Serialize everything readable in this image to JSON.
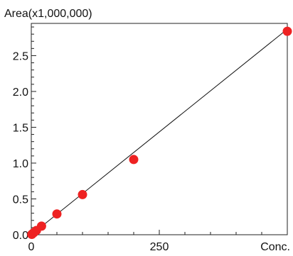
{
  "chart_data": {
    "type": "scatter",
    "ylabel": "Area(x1,000,000)",
    "xlabel": "Conc.",
    "xlim": [
      0,
      500
    ],
    "ylim": [
      0,
      2.95
    ],
    "x_ticks": [
      0,
      250
    ],
    "x_tick_labels": [
      "0",
      "250"
    ],
    "y_ticks": [
      0.0,
      0.5,
      1.0,
      1.5,
      2.0,
      2.5
    ],
    "y_tick_labels": [
      "0.0",
      "0.5",
      "1.0",
      "1.5",
      "2.0",
      "2.5"
    ],
    "grid": false,
    "series": [
      {
        "points": [
          {
            "x": 1,
            "y": 0.005
          },
          {
            "x": 2,
            "y": 0.012
          },
          {
            "x": 5,
            "y": 0.03
          },
          {
            "x": 10,
            "y": 0.06
          },
          {
            "x": 20,
            "y": 0.12
          },
          {
            "x": 50,
            "y": 0.29
          },
          {
            "x": 100,
            "y": 0.56
          },
          {
            "x": 200,
            "y": 1.05
          },
          {
            "x": 500,
            "y": 2.84
          }
        ]
      }
    ],
    "fit_line": {
      "x0": 0,
      "y0": 0.0,
      "x1": 500,
      "y1": 2.87
    },
    "colors": {
      "points": "#ee2222",
      "line": "#111111",
      "axes": "#222222"
    }
  }
}
